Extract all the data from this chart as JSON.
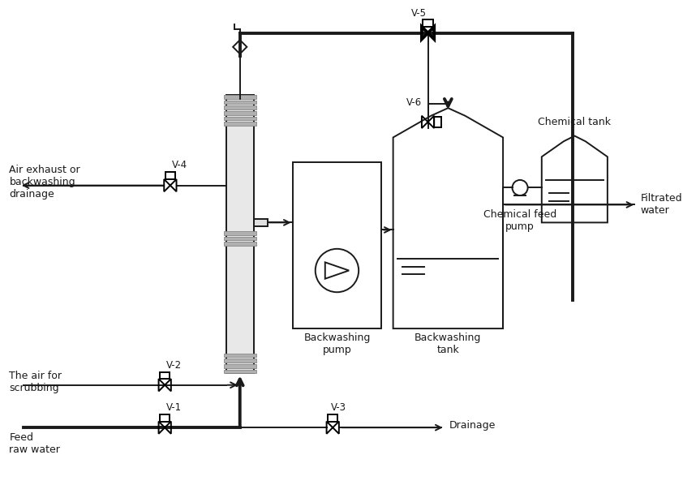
{
  "bg_color": "#ffffff",
  "line_color": "#1a1a1a",
  "thick_lw": 2.8,
  "thin_lw": 1.4,
  "labels": {
    "air_exhaust": "Air exhaust or\nbackwashing\ndrainage",
    "air_scrubbing": "The air for\nscrubbing",
    "feed_raw_water": "Feed\nraw water",
    "filtrated_water": "Filtrated\nwater",
    "drainage": "Drainage",
    "backwashing_pump": "Backwashing\npump",
    "backwashing_tank": "Backwashing\ntank",
    "chemical_tank": "Chemical tank",
    "chemical_feed_pump": "Chemical feed\npump",
    "v1": "V-1",
    "v2": "V-2",
    "v3": "V-3",
    "v4": "V-4",
    "v5": "V-5",
    "v6": "V-6"
  }
}
